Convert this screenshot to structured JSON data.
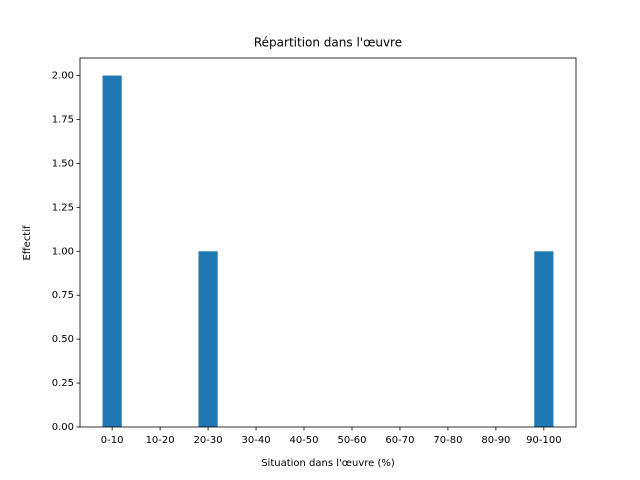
{
  "chart_data": {
    "type": "bar",
    "title": "Répartition dans l'œuvre",
    "x_label": "Situation dans l'œuvre (%)",
    "y_label": "Effectif",
    "categories": [
      "0-10",
      "10-20",
      "20-30",
      "30-40",
      "40-50",
      "50-60",
      "60-70",
      "70-80",
      "80-90",
      "90-100"
    ],
    "values": [
      2,
      0,
      1,
      0,
      0,
      0,
      0,
      0,
      0,
      1
    ],
    "color": "#1f77b4",
    "ylim": [
      0,
      2.1
    ],
    "yticks": [
      {
        "value": 0,
        "label": "0.00"
      },
      {
        "value": 0.25,
        "label": "0.25"
      },
      {
        "value": 0.5,
        "label": "0.50"
      },
      {
        "value": 0.75,
        "label": "0.75"
      },
      {
        "value": 1,
        "label": "1.00"
      },
      {
        "value": 1.25,
        "label": "1.25"
      },
      {
        "value": 1.5,
        "label": "1.50"
      },
      {
        "value": 1.75,
        "label": "1.75"
      },
      {
        "value": 2,
        "label": "2.00"
      }
    ],
    "grid": false
  }
}
